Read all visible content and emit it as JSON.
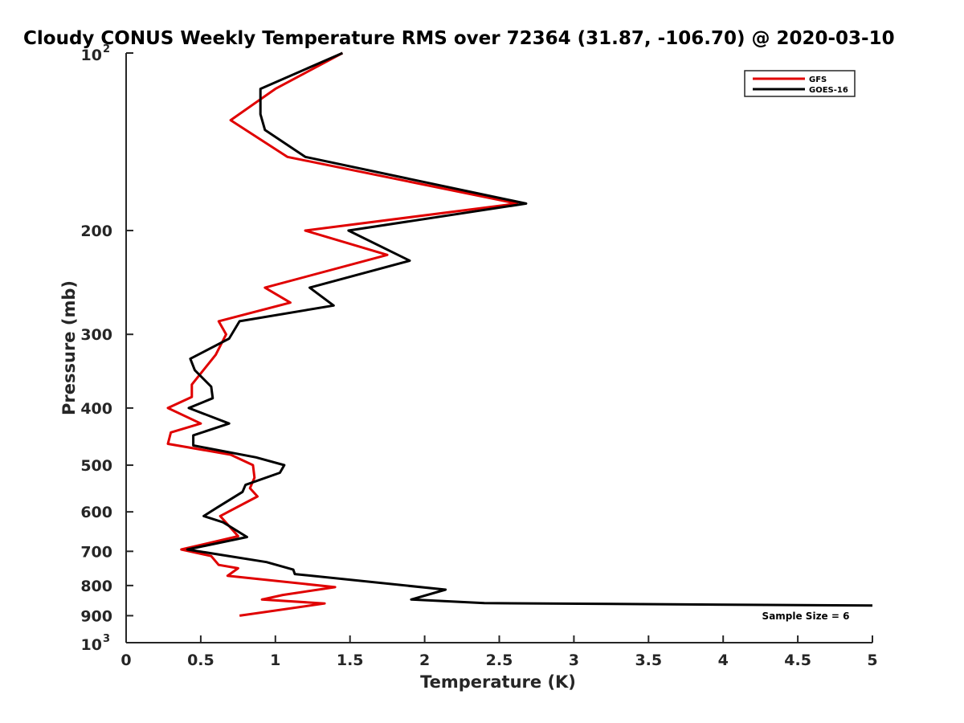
{
  "chart_data": {
    "type": "line",
    "title": "Cloudy CONUS Weekly Temperature RMS over 72364 (31.87, -106.70) @ 2020-03-10",
    "xlabel": "Temperature (K)",
    "ylabel": "Pressure (mb)",
    "xlim": [
      0,
      5
    ],
    "ylim": [
      100,
      1000
    ],
    "y_scale": "log",
    "y_reversed": true,
    "grid": false,
    "legend_position": "top-right",
    "x_ticks": [
      {
        "value": 0,
        "label": "0"
      },
      {
        "value": 0.5,
        "label": "0.5"
      },
      {
        "value": 1,
        "label": "1"
      },
      {
        "value": 1.5,
        "label": "1.5"
      },
      {
        "value": 2,
        "label": "2"
      },
      {
        "value": 2.5,
        "label": "2.5"
      },
      {
        "value": 3,
        "label": "3"
      },
      {
        "value": 3.5,
        "label": "3.5"
      },
      {
        "value": 4,
        "label": "4"
      },
      {
        "value": 4.5,
        "label": "4.5"
      },
      {
        "value": 5,
        "label": "5"
      }
    ],
    "y_ticks": [
      {
        "value": 100,
        "base": "10",
        "exp": "2"
      },
      {
        "value": 200,
        "label": "200"
      },
      {
        "value": 300,
        "label": "300"
      },
      {
        "value": 400,
        "label": "400"
      },
      {
        "value": 500,
        "label": "500"
      },
      {
        "value": 600,
        "label": "600"
      },
      {
        "value": 700,
        "label": "700"
      },
      {
        "value": 800,
        "label": "800"
      },
      {
        "value": 900,
        "label": "900"
      },
      {
        "value": 1000,
        "base": "10",
        "exp": "3"
      }
    ],
    "annotation": "Sample Size = 6",
    "series": [
      {
        "name": "GFS",
        "color": "#e00000",
        "points": [
          [
            1.45,
            100
          ],
          [
            1.0,
            115
          ],
          [
            0.7,
            130
          ],
          [
            1.08,
            150
          ],
          [
            2.62,
            180
          ],
          [
            1.2,
            200
          ],
          [
            1.75,
            220
          ],
          [
            0.93,
            250
          ],
          [
            1.1,
            265
          ],
          [
            0.62,
            285
          ],
          [
            0.67,
            300
          ],
          [
            0.6,
            325
          ],
          [
            0.44,
            365
          ],
          [
            0.44,
            383
          ],
          [
            0.28,
            400
          ],
          [
            0.5,
            425
          ],
          [
            0.3,
            440
          ],
          [
            0.28,
            460
          ],
          [
            0.7,
            480
          ],
          [
            0.85,
            500
          ],
          [
            0.86,
            525
          ],
          [
            0.83,
            547
          ],
          [
            0.88,
            565
          ],
          [
            0.63,
            610
          ],
          [
            0.75,
            660
          ],
          [
            0.37,
            695
          ],
          [
            0.57,
            713
          ],
          [
            0.62,
            738
          ],
          [
            0.75,
            748
          ],
          [
            0.68,
            770
          ],
          [
            1.4,
            805
          ],
          [
            1.05,
            830
          ],
          [
            0.91,
            845
          ],
          [
            1.33,
            858
          ],
          [
            0.76,
            900
          ]
        ]
      },
      {
        "name": "GOES-16",
        "color": "#000000",
        "points": [
          [
            1.45,
            100
          ],
          [
            0.9,
            115
          ],
          [
            0.9,
            127
          ],
          [
            0.93,
            135
          ],
          [
            1.2,
            150
          ],
          [
            2.68,
            180
          ],
          [
            1.49,
            200
          ],
          [
            1.9,
            225
          ],
          [
            1.23,
            250
          ],
          [
            1.39,
            268
          ],
          [
            0.76,
            285
          ],
          [
            0.69,
            305
          ],
          [
            0.43,
            330
          ],
          [
            0.46,
            345
          ],
          [
            0.57,
            368
          ],
          [
            0.58,
            385
          ],
          [
            0.42,
            400
          ],
          [
            0.69,
            425
          ],
          [
            0.45,
            445
          ],
          [
            0.45,
            463
          ],
          [
            0.87,
            485
          ],
          [
            1.06,
            500
          ],
          [
            1.03,
            515
          ],
          [
            0.8,
            540
          ],
          [
            0.78,
            555
          ],
          [
            0.61,
            590
          ],
          [
            0.52,
            610
          ],
          [
            0.65,
            625
          ],
          [
            0.81,
            662
          ],
          [
            0.41,
            695
          ],
          [
            0.94,
            730
          ],
          [
            1.12,
            752
          ],
          [
            1.13,
            765
          ],
          [
            2.14,
            813
          ],
          [
            1.91,
            845
          ],
          [
            2.4,
            857
          ],
          [
            5.0,
            865
          ]
        ]
      }
    ]
  }
}
